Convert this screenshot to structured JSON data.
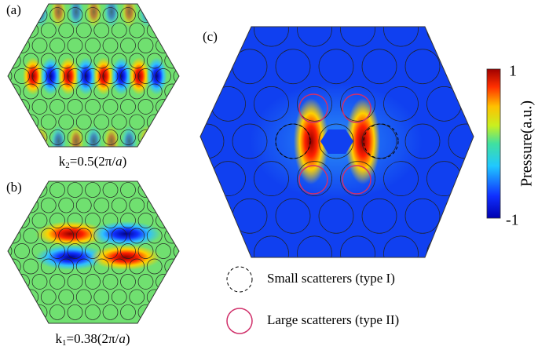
{
  "panels": [
    {
      "label": "(a)",
      "caption": {
        "k": "k",
        "sub": "2",
        "mid": "=0.5(2π/",
        "a": "a",
        "end": ")"
      }
    },
    {
      "label": "(b)",
      "caption": {
        "k": "k",
        "sub": "1",
        "mid": "=0.38(2π/",
        "a": "a",
        "end": ")"
      }
    },
    {
      "label": "(c)"
    }
  ],
  "colorbar": {
    "title": "Pressure(a.u.)",
    "max_label": "1",
    "min_label": "-1"
  },
  "legend": [
    "Small scatterers (type I)",
    "Large scatterers (type II)"
  ]
}
